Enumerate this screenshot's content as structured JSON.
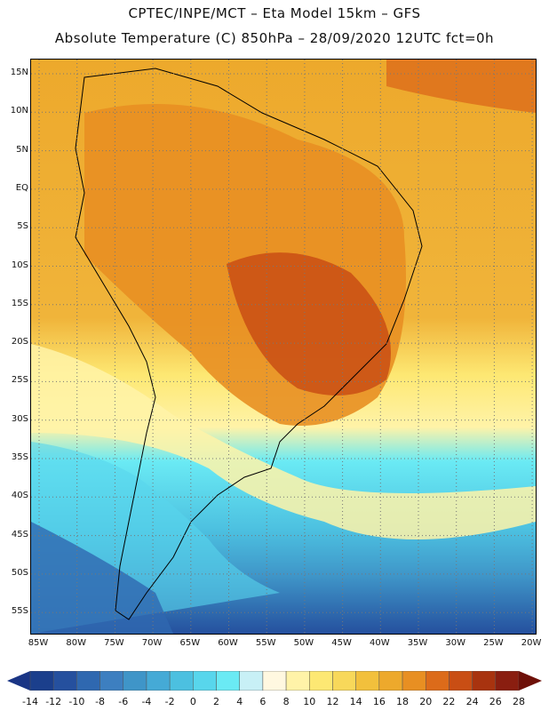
{
  "header": {
    "line1": "CPTEC/INPE/MCT –   Eta Model 15km – GFS",
    "line2": "Absolute Temperature (C) 850hPa – 28/09/2020 12UTC fct=0h"
  },
  "axes": {
    "lat_labels": [
      "15N",
      "10N",
      "5N",
      "EQ",
      "5S",
      "10S",
      "15S",
      "20S",
      "25S",
      "30S",
      "35S",
      "40S",
      "45S",
      "50S",
      "55S"
    ],
    "lon_labels": [
      "85W",
      "80W",
      "75W",
      "70W",
      "65W",
      "60W",
      "55W",
      "50W",
      "45W",
      "40W",
      "35W",
      "30W",
      "25W",
      "20W"
    ]
  },
  "colorbar": {
    "labels": [
      "-14",
      "-12",
      "-10",
      "-8",
      "-6",
      "-4",
      "-2",
      "0",
      "2",
      "4",
      "6",
      "8",
      "10",
      "12",
      "14",
      "16",
      "18",
      "20",
      "22",
      "24",
      "26",
      "28"
    ],
    "colors": [
      "#1b3f8c",
      "#25509e",
      "#2f68b0",
      "#3d7fc0",
      "#3f95c8",
      "#45aad6",
      "#4cc0e0",
      "#58d6ec",
      "#6aeaf4",
      "#c8f0f6",
      "#fff8e0",
      "#fff3a8",
      "#fde873",
      "#f8d85a",
      "#f2c03c",
      "#eda92c",
      "#e88f22",
      "#dc6b1a",
      "#c94e14",
      "#a8330f",
      "#8a1e10"
    ],
    "under_color": "#1a3585",
    "over_color": "#6e1008"
  },
  "map_colors": {
    "ocean_north": "#eda92c",
    "warm_core": "#dc6b1a",
    "hot_core": "#c94e14",
    "mid_south": "#fde873",
    "cool_band": "#4cc0e0",
    "cold_south": "#25509e"
  }
}
